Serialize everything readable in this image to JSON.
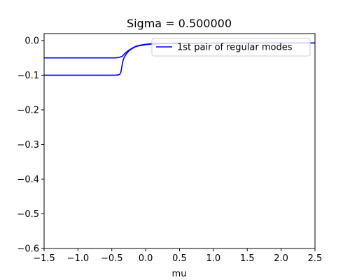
{
  "chart_data": {
    "type": "line",
    "title": "Sigma = 0.500000",
    "xlabel": "mu",
    "ylabel": "",
    "xlim": [
      -1.5,
      2.5
    ],
    "ylim": [
      -0.6,
      0.02
    ],
    "xticks": [
      -1.5,
      -1.0,
      -0.5,
      0.0,
      0.5,
      1.0,
      1.5,
      2.0,
      2.5
    ],
    "xtick_labels": [
      "−1.5",
      "−1.0",
      "−0.5",
      "0.0",
      "0.5",
      "1.0",
      "1.5",
      "2.0",
      "2.5"
    ],
    "yticks": [
      0.0,
      -0.1,
      -0.2,
      -0.3,
      -0.4,
      -0.5,
      -0.6
    ],
    "ytick_labels": [
      "0.0",
      "−0.1",
      "−0.2",
      "−0.3",
      "−0.4",
      "−0.5",
      "−0.6"
    ],
    "grid": false,
    "legend_position": "top-right",
    "series": [
      {
        "name": "1st pair of regular modes",
        "color": "#0000ff",
        "show_in_legend": true,
        "x": [
          -1.5,
          -1.0,
          -0.6,
          -0.45,
          -0.4,
          -0.37,
          -0.35,
          -0.33,
          -0.3,
          -0.25,
          -0.2,
          -0.15,
          -0.1,
          0.0,
          0.1,
          0.2,
          0.5,
          1.0,
          1.5,
          2.0,
          2.5
        ],
        "y": [
          -0.05,
          -0.05,
          -0.05,
          -0.05,
          -0.049,
          -0.047,
          -0.046,
          -0.042,
          -0.036,
          -0.028,
          -0.022,
          -0.017,
          -0.014,
          -0.011,
          -0.009,
          -0.009,
          -0.008,
          -0.008,
          -0.007,
          -0.007,
          -0.007
        ]
      },
      {
        "name": "",
        "color": "#0000ff",
        "show_in_legend": false,
        "x": [
          -1.5,
          -1.0,
          -0.6,
          -0.45,
          -0.4,
          -0.38,
          -0.37,
          -0.36,
          -0.35,
          -0.34,
          -0.33,
          -0.31,
          -0.28,
          -0.25,
          -0.2,
          -0.15,
          -0.1,
          0.0,
          0.1,
          0.2,
          0.5,
          1.0,
          1.5,
          2.0,
          2.5
        ],
        "y": [
          -0.1,
          -0.1,
          -0.1,
          -0.1,
          -0.099,
          -0.097,
          -0.093,
          -0.085,
          -0.073,
          -0.062,
          -0.055,
          -0.046,
          -0.037,
          -0.03,
          -0.023,
          -0.018,
          -0.015,
          -0.012,
          -0.01,
          -0.009,
          -0.008,
          -0.008,
          -0.007,
          -0.007,
          -0.007
        ]
      }
    ]
  }
}
